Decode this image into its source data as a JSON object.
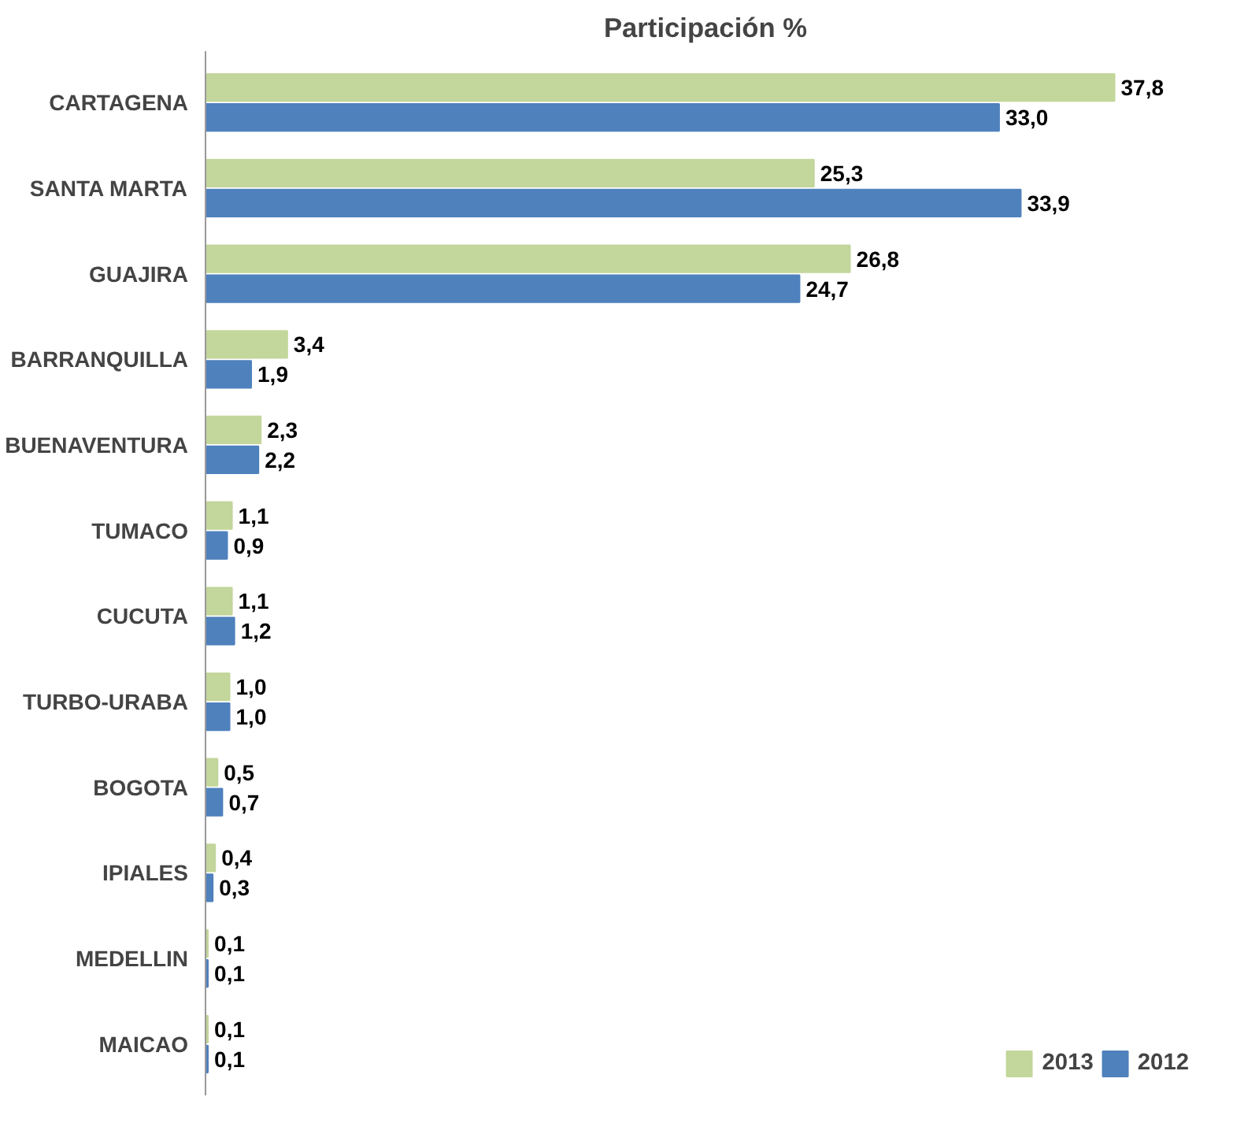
{
  "chart_data": {
    "type": "bar",
    "orientation": "horizontal",
    "title": "Participación %",
    "categories": [
      "CARTAGENA",
      "SANTA MARTA",
      "GUAJIRA",
      "BARRANQUILLA",
      "BUENAVENTURA",
      "TUMACO",
      "CUCUTA",
      "TURBO-URABA",
      "BOGOTA",
      "IPIALES",
      "MEDELLIN",
      "MAICAO"
    ],
    "series": [
      {
        "name": "2013",
        "color": "#c3d69b",
        "values": [
          37.8,
          25.3,
          26.8,
          3.4,
          2.3,
          1.1,
          1.1,
          1.0,
          0.5,
          0.4,
          0.1,
          0.1
        ],
        "value_labels": [
          "37,8",
          "25,3",
          "26,8",
          "3,4",
          "2,3",
          "1,1",
          "1,1",
          "1,0",
          "0,5",
          "0,4",
          "0,1",
          "0,1"
        ]
      },
      {
        "name": "2012",
        "color": "#4f81bd",
        "values": [
          33.0,
          33.9,
          24.7,
          1.9,
          2.2,
          0.9,
          1.2,
          1.0,
          0.7,
          0.3,
          0.1,
          0.1
        ],
        "value_labels": [
          "33,0",
          "33,9",
          "24,7",
          "1,9",
          "2,2",
          "0,9",
          "1,2",
          "1,0",
          "0,7",
          "0,3",
          "0,1",
          "0,1"
        ]
      }
    ],
    "legend": "bottom right",
    "grid": false
  }
}
